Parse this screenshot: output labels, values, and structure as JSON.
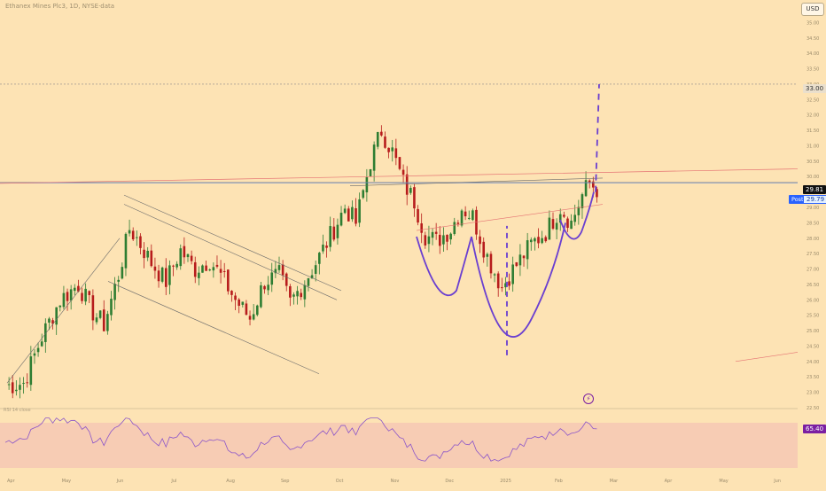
{
  "header": {
    "title": "Ethanex Mines Plc3, 1D, NYSE·data",
    "currency": "USD",
    "rsi_label": "RSI 14 close"
  },
  "price_badges": {
    "target": "33.00",
    "last": "29.81",
    "post_label": "Post",
    "post": "29.79",
    "rsi": "65.40"
  },
  "colors": {
    "background": "#fde3b4",
    "bull": "#2e7d32",
    "bear": "#b71c1c",
    "pattern": "#6a3fd0",
    "trendline": "#6b6b6b",
    "resistance": "#e57373",
    "rsi_band": "#f6c8b4",
    "rsi_line": "#8b55c9"
  },
  "icons": [
    "lightning-icon"
  ],
  "chart_data": {
    "type": "candlestick",
    "title": "Ethanex Mines Plc3, 1D, NYSE·data",
    "currency": "USD",
    "x_ticks": [
      "Apr",
      "May",
      "Jun",
      "Jul",
      "Aug",
      "Sep",
      "Oct",
      "Nov",
      "Dec",
      "2025",
      "Feb",
      "Mar",
      "Apr",
      "May",
      "Jun"
    ],
    "y_ticks": [
      "35.50",
      "35.00",
      "34.50",
      "34.00",
      "33.50",
      "33.00",
      "32.50",
      "32.00",
      "31.50",
      "31.00",
      "30.50",
      "30.00",
      "29.50",
      "29.00",
      "28.50",
      "28.00",
      "27.50",
      "27.00",
      "26.50",
      "26.00",
      "25.50",
      "25.00",
      "24.50",
      "24.00",
      "23.50",
      "23.00",
      "22.50"
    ],
    "y_range": [
      22.5,
      35.5
    ],
    "price_trajectory": [
      [
        0,
        23.2
      ],
      [
        5,
        23.3
      ],
      [
        10,
        24.8
      ],
      [
        15,
        26.0
      ],
      [
        20,
        26.5
      ],
      [
        24,
        25.6
      ],
      [
        27,
        25.2
      ],
      [
        31,
        26.8
      ],
      [
        34,
        28.3
      ],
      [
        36,
        28.0
      ],
      [
        40,
        27.2
      ],
      [
        44,
        26.6
      ],
      [
        48,
        27.6
      ],
      [
        52,
        27.0
      ],
      [
        56,
        27.3
      ],
      [
        60,
        26.6
      ],
      [
        63,
        26.0
      ],
      [
        67,
        25.4
      ],
      [
        71,
        26.6
      ],
      [
        75,
        26.8
      ],
      [
        78,
        25.9
      ],
      [
        82,
        26.6
      ],
      [
        86,
        27.4
      ],
      [
        90,
        28.3
      ],
      [
        93,
        29.0
      ],
      [
        96,
        28.5
      ],
      [
        100,
        30.5
      ],
      [
        103,
        31.5
      ],
      [
        106,
        30.8
      ],
      [
        109,
        29.8
      ],
      [
        112,
        29.2
      ],
      [
        115,
        28.1
      ],
      [
        118,
        27.9
      ],
      [
        122,
        28.3
      ],
      [
        125,
        29.0
      ],
      [
        128,
        28.7
      ],
      [
        132,
        27.4
      ],
      [
        134,
        26.9
      ],
      [
        136,
        26.4
      ],
      [
        138,
        26.8
      ],
      [
        141,
        27.3
      ],
      [
        144,
        27.8
      ],
      [
        148,
        28.2
      ],
      [
        152,
        29.0
      ],
      [
        155,
        28.5
      ],
      [
        158,
        29.4
      ],
      [
        160,
        29.8
      ],
      [
        162,
        29.6
      ]
    ],
    "target_price": 33.0,
    "last_price": 29.81,
    "post_market_price": 29.79,
    "rsi_value": 65.4,
    "pattern": "cup and handle with projected breakout to 33.00"
  }
}
